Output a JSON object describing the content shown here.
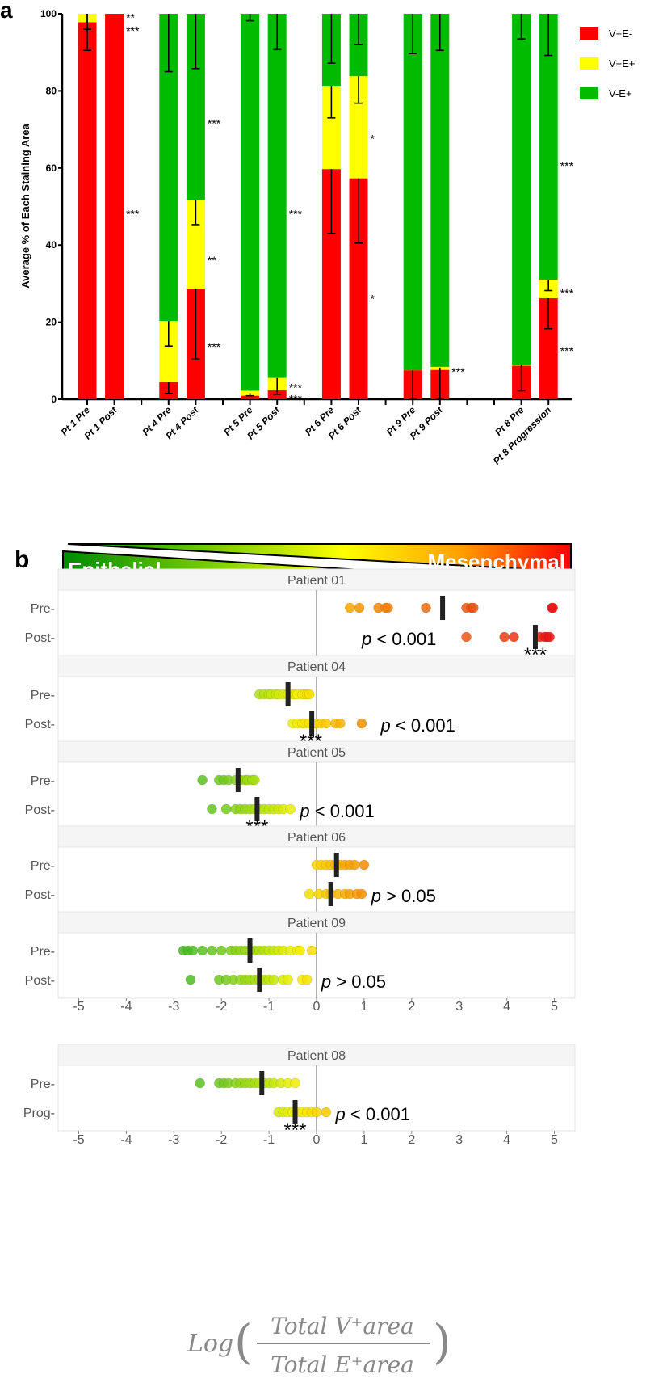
{
  "chart_data": [
    {
      "type": "bar",
      "stacked": true,
      "panel_label": "a",
      "ylabel": "Average % of Each Staining Area",
      "ylim": [
        0,
        100
      ],
      "yticks": [
        "0",
        "20",
        "40",
        "60",
        "80",
        "100"
      ],
      "legend": [
        {
          "name": "V+E-",
          "color": "#ff0000"
        },
        {
          "name": "V+E+",
          "color": "#ffff00"
        },
        {
          "name": "V-E+",
          "color": "#00bb00"
        }
      ],
      "legend_position": "top-right",
      "slot_count": 18,
      "categories": [
        {
          "label": "Pt 1 Pre",
          "slot": 0,
          "red": 97.8,
          "yellow": 2.2,
          "errors": [
            [
              90.5,
              100
            ],
            [
              96,
              100
            ]
          ],
          "stars": []
        },
        {
          "label": "Pt 1 Post",
          "slot": 1,
          "red": 100,
          "yellow": 0,
          "errors": [],
          "stars": [
            {
              "text": "**",
              "y": 99.5
            },
            {
              "text": "***",
              "y": 96
            },
            {
              "text": "***",
              "y": 48.5
            }
          ]
        },
        {
          "label": "Pt 4 Pre",
          "slot": 3,
          "red": 4.5,
          "yellow": 15.8,
          "errors": [
            [
              1.5,
              4.5
            ],
            [
              13.8,
              20.3
            ],
            [
              85,
              100
            ]
          ],
          "stars": []
        },
        {
          "label": "Pt 4 Post",
          "slot": 4,
          "red": 28.7,
          "yellow": 23,
          "errors": [
            [
              10.5,
              28.7
            ],
            [
              45.3,
              51.7
            ],
            [
              85.8,
              100
            ]
          ],
          "stars": [
            {
              "text": "***",
              "y": 72
            },
            {
              "text": "**",
              "y": 36.5
            },
            {
              "text": "***",
              "y": 14
            }
          ]
        },
        {
          "label": "Pt 5 Pre",
          "slot": 6,
          "red": 0.9,
          "yellow": 1.3,
          "errors": [
            [
              0.9,
              1.6
            ],
            [
              98.2,
              100
            ]
          ],
          "stars": []
        },
        {
          "label": "Pt 5 Post",
          "slot": 7,
          "red": 2.3,
          "yellow": 3.2,
          "errors": [
            [
              1.3,
              5.5
            ],
            [
              90.7,
              100
            ]
          ],
          "stars": [
            {
              "text": "***",
              "y": 48.5
            },
            {
              "text": "***",
              "y": 3.5
            },
            {
              "text": "***",
              "y": 0.5
            }
          ]
        },
        {
          "label": "Pt 6 Pre",
          "slot": 9,
          "red": 59.7,
          "yellow": 21.4,
          "errors": [
            [
              43,
              59.7
            ],
            [
              73,
              81.1
            ],
            [
              87.2,
              100
            ]
          ],
          "stars": []
        },
        {
          "label": "Pt 6 Post",
          "slot": 10,
          "red": 57.3,
          "yellow": 26.5,
          "errors": [
            [
              40.5,
              57.3
            ],
            [
              76.8,
              83.8
            ],
            [
              92,
              100
            ]
          ],
          "stars": [
            {
              "text": "*",
              "y": 68
            },
            {
              "text": "*",
              "y": 26.5
            }
          ]
        },
        {
          "label": "Pt 9 Pre",
          "slot": 12,
          "red": 7.5,
          "yellow": 0,
          "errors": [
            [
              0,
              7.5
            ],
            [
              89.7,
              100
            ]
          ],
          "stars": []
        },
        {
          "label": "Pt 9 Post",
          "slot": 13,
          "red": 7.6,
          "yellow": 0.8,
          "errors": [
            [
              0,
              8.2
            ],
            [
              90.5,
              100
            ]
          ],
          "stars": [
            {
              "text": "***",
              "y": 7.5
            }
          ]
        },
        {
          "label": "Pt 8 Pre",
          "slot": 16,
          "red": 8.7,
          "yellow": 0.3,
          "errors": [
            [
              2.2,
              8.9
            ],
            [
              93.5,
              100
            ]
          ],
          "stars": []
        },
        {
          "label": "Pt 8 Progression",
          "slot": 17,
          "red": 26.2,
          "yellow": 4.8,
          "errors": [
            [
              18.3,
              26.2
            ],
            [
              28.2,
              31
            ],
            [
              89.2,
              100
            ]
          ],
          "stars": [
            {
              "text": "***",
              "y": 61
            },
            {
              "text": "***",
              "y": 28
            },
            {
              "text": "***",
              "y": 13
            }
          ]
        }
      ]
    },
    {
      "type": "scatter",
      "panel_label": "b",
      "banner": {
        "left": "Epithelial",
        "right": "Mesenchymal"
      },
      "xlim": [
        -5.5,
        5.5
      ],
      "xticks": [
        "-5",
        "-4",
        "-3",
        "-2",
        "-1",
        "0",
        "1",
        "2",
        "3",
        "4",
        "5"
      ],
      "xlabel": {
        "func": "Log",
        "numerator": "Total V⁺area",
        "denominator": "Total E⁺area"
      },
      "panels": [
        {
          "title": "Patient 01",
          "rows": [
            {
              "label": "Pre-",
              "mean": 2.65,
              "points": [
                0.7,
                0.9,
                1.3,
                1.45,
                1.5,
                2.3,
                3.15,
                3.25,
                3.3,
                4.95,
                4.97
              ]
            },
            {
              "label": "Post-",
              "mean": 4.6,
              "points": [
                3.15,
                3.95,
                4.15,
                4.7,
                4.8,
                4.85,
                4.9
              ]
            }
          ],
          "p": {
            "sym": "p",
            "rest": " < 0.001",
            "x": 0.95
          },
          "stars": {
            "text": "***",
            "x": 4.6
          }
        },
        {
          "title": "Patient 04",
          "rows": [
            {
              "label": "Pre-",
              "mean": -0.6,
              "points": [
                -1.2,
                -1.1,
                -1.0,
                -0.95,
                -0.85,
                -0.8,
                -0.7,
                -0.6,
                -0.5,
                -0.45,
                -0.4,
                -0.3,
                -0.25,
                -0.2,
                -0.15
              ]
            },
            {
              "label": "Post-",
              "mean": -0.1,
              "points": [
                -0.5,
                -0.4,
                -0.3,
                -0.25,
                -0.15,
                -0.05,
                0,
                0.1,
                0.2,
                0.4,
                0.5,
                0.95
              ]
            }
          ],
          "p": {
            "sym": "p",
            "rest": " < 0.001",
            "x": 1.35
          },
          "stars": {
            "text": "***",
            "x": -0.12
          }
        },
        {
          "title": "Patient 05",
          "rows": [
            {
              "label": "Pre-",
              "mean": -1.65,
              "points": [
                -2.4,
                -2.05,
                -1.95,
                -1.85,
                -1.7,
                -1.6,
                -1.5,
                -1.45,
                -1.35,
                -1.3
              ]
            },
            {
              "label": "Post-",
              "mean": -1.25,
              "points": [
                -2.2,
                -1.9,
                -1.7,
                -1.6,
                -1.5,
                -1.4,
                -1.3,
                -1.2,
                -1.1,
                -1.0,
                -0.9,
                -0.8,
                -0.7,
                -0.55
              ]
            }
          ],
          "p": {
            "sym": "p",
            "rest": " < 0.001",
            "x": -0.35
          },
          "stars": {
            "text": "***",
            "x": -1.25
          }
        },
        {
          "title": "Patient 06",
          "rows": [
            {
              "label": "Pre-",
              "mean": 0.42,
              "points": [
                0,
                0.1,
                0.2,
                0.3,
                0.4,
                0.5,
                0.6,
                0.7,
                0.8,
                1.0
              ]
            },
            {
              "label": "Post-",
              "mean": 0.3,
              "points": [
                -0.15,
                0.05,
                0.2,
                0.3,
                0.45,
                0.6,
                0.7,
                0.85,
                0.95
              ]
            }
          ],
          "p": {
            "sym": "p",
            "rest": " > 0.05",
            "x": 1.15
          },
          "stars": null
        },
        {
          "title": "Patient 09",
          "rows": [
            {
              "label": "Pre-",
              "mean": -1.4,
              "points": [
                -2.8,
                -2.7,
                -2.6,
                -2.4,
                -2.2,
                -2.0,
                -1.8,
                -1.7,
                -1.6,
                -1.5,
                -1.4,
                -1.3,
                -1.2,
                -1.1,
                -1.0,
                -0.9,
                -0.8,
                -0.7,
                -0.55,
                -0.4,
                -0.35,
                -0.1
              ]
            },
            {
              "label": "Post-",
              "mean": -1.2,
              "points": [
                -2.65,
                -2.05,
                -1.9,
                -1.75,
                -1.6,
                -1.5,
                -1.4,
                -1.3,
                -1.2,
                -1.1,
                -1.0,
                -0.9,
                -0.7,
                -0.6,
                -0.3,
                -0.2
              ]
            }
          ],
          "p": {
            "sym": "p",
            "rest": " > 0.05",
            "x": 0.1
          },
          "stars": null
        },
        {
          "title": "Patient 08",
          "rows": [
            {
              "label": "Pre-",
              "mean": -1.15,
              "points": [
                -2.45,
                -2.05,
                -1.95,
                -1.85,
                -1.7,
                -1.6,
                -1.5,
                -1.4,
                -1.3,
                -1.2,
                -1.1,
                -1.0,
                -0.9,
                -0.75,
                -0.6,
                -0.45
              ]
            },
            {
              "label": "Prog-",
              "mean": -0.45,
              "points": [
                -0.8,
                -0.7,
                -0.6,
                -0.5,
                -0.4,
                -0.3,
                -0.2,
                -0.1,
                0,
                0.2
              ]
            }
          ],
          "p": {
            "sym": "p",
            "rest": " < 0.001",
            "x": 0.4
          },
          "stars": {
            "text": "***",
            "x": -0.45
          }
        }
      ]
    }
  ]
}
